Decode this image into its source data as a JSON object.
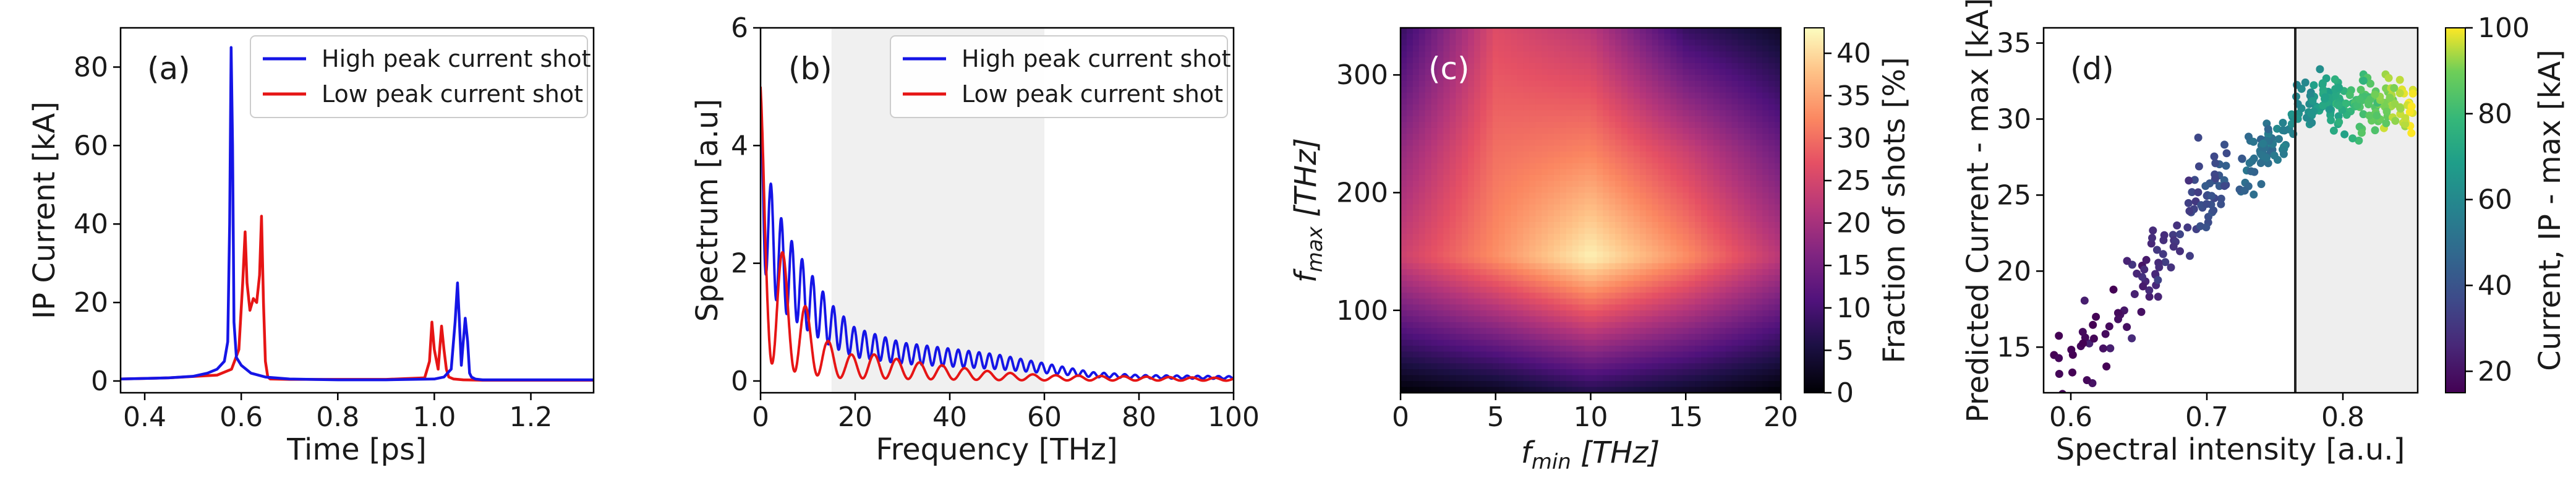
{
  "chart_data": [
    {
      "type": "line",
      "panel_label": "(a)",
      "xlabel": "Time [ps]",
      "ylabel": "IP Current [kA]",
      "xlim": [
        0.35,
        1.33
      ],
      "ylim": [
        -3,
        90
      ],
      "xticks": [
        0.4,
        0.6,
        0.8,
        1.0,
        1.2
      ],
      "xtick_labels": [
        "0.4",
        "0.6",
        "0.8",
        "1.0",
        "1.2"
      ],
      "yticks": [
        0,
        20,
        40,
        60,
        80
      ],
      "ytick_labels": [
        "0",
        "20",
        "40",
        "60",
        "80"
      ],
      "legend_position": "top-right",
      "series": [
        {
          "name": "High peak current shot",
          "color": "#1515e6",
          "x": [
            0.35,
            0.45,
            0.5,
            0.53,
            0.55,
            0.565,
            0.572,
            0.576,
            0.579,
            0.582,
            0.585,
            0.59,
            0.6,
            0.62,
            0.65,
            0.7,
            0.8,
            0.9,
            1.0,
            1.02,
            1.035,
            1.043,
            1.048,
            1.052,
            1.056,
            1.06,
            1.064,
            1.069,
            1.073,
            1.077,
            1.085,
            1.1,
            1.2,
            1.33
          ],
          "y": [
            0.5,
            0.8,
            1.2,
            2.0,
            3.0,
            5.0,
            10.0,
            40.0,
            85.0,
            60.0,
            15.0,
            6.0,
            4.0,
            2.0,
            1.0,
            0.5,
            0.3,
            0.3,
            0.5,
            1.0,
            3.0,
            15.0,
            25.0,
            15.0,
            4.0,
            10.0,
            16.0,
            10.0,
            2.0,
            1.0,
            0.5,
            0.3,
            0.3,
            0.3
          ]
        },
        {
          "name": "Low peak current shot",
          "color": "#e61515",
          "x": [
            0.35,
            0.45,
            0.55,
            0.58,
            0.595,
            0.603,
            0.608,
            0.612,
            0.618,
            0.625,
            0.632,
            0.638,
            0.642,
            0.646,
            0.65,
            0.655,
            0.66,
            0.7,
            0.9,
            0.98,
            0.99,
            0.995,
            1.0,
            1.008,
            1.015,
            1.02,
            1.025,
            1.03,
            1.04,
            1.06,
            1.1,
            1.33
          ],
          "y": [
            0.5,
            0.8,
            1.5,
            3.0,
            8.0,
            25.0,
            38.0,
            25.0,
            18.0,
            21.0,
            20.0,
            27.0,
            42.0,
            20.0,
            5.0,
            1.0,
            0.5,
            0.4,
            0.4,
            0.8,
            5.0,
            15.0,
            8.0,
            3.0,
            14.0,
            8.0,
            3.0,
            1.0,
            0.5,
            0.3,
            0.2,
            0.2
          ]
        }
      ]
    },
    {
      "type": "line",
      "panel_label": "(b)",
      "xlabel": "Frequency [THz]",
      "ylabel": "Spectrum [a.u]",
      "xlim": [
        0,
        100
      ],
      "ylim": [
        -0.2,
        6
      ],
      "xticks": [
        0,
        20,
        40,
        60,
        80,
        100
      ],
      "xtick_labels": [
        "0",
        "20",
        "40",
        "60",
        "80",
        "100"
      ],
      "yticks": [
        0,
        2,
        4,
        6
      ],
      "ytick_labels": [
        "0",
        "2",
        "4",
        "6"
      ],
      "shaded_x_range": [
        15,
        60
      ],
      "legend_position": "top-right",
      "series": [
        {
          "name": "High peak current shot",
          "color": "#1515e6",
          "model": "oscillating",
          "amplitude_points": [
            [
              0,
              4.8
            ],
            [
              2,
              3.4
            ],
            [
              5,
              2.6
            ],
            [
              10,
              1.9
            ],
            [
              15,
              1.3
            ],
            [
              20,
              0.9
            ],
            [
              30,
              0.65
            ],
            [
              40,
              0.55
            ],
            [
              50,
              0.45
            ],
            [
              60,
              0.3
            ],
            [
              70,
              0.15
            ],
            [
              80,
              0.1
            ],
            [
              100,
              0.08
            ]
          ],
          "period_thz": 2.2,
          "depth": 0.55
        },
        {
          "name": "Low peak current shot",
          "color": "#e61515",
          "model": "oscillating",
          "amplitude_points": [
            [
              0,
              5.0
            ],
            [
              1,
              3.6
            ],
            [
              3,
              2.7
            ],
            [
              6,
              1.8
            ],
            [
              10,
              1.2
            ],
            [
              14,
              0.7
            ],
            [
              18,
              0.45
            ],
            [
              25,
              0.45
            ],
            [
              30,
              0.35
            ],
            [
              40,
              0.25
            ],
            [
              50,
              0.15
            ],
            [
              60,
              0.1
            ],
            [
              100,
              0.05
            ]
          ],
          "period_thz": 4.8,
          "depth": 0.9
        }
      ]
    },
    {
      "type": "heatmap",
      "panel_label": "(c)",
      "xlabel_main": "f",
      "xlabel_sub": "min",
      "xlabel_unit": " [THz]",
      "ylabel_main": "f",
      "ylabel_sub": "max",
      "ylabel_unit": " [THz]",
      "xlim": [
        0,
        20
      ],
      "ylim": [
        30,
        340
      ],
      "xticks": [
        0,
        5,
        10,
        15,
        20
      ],
      "xtick_labels": [
        "0",
        "5",
        "10",
        "15",
        "20"
      ],
      "yticks": [
        100,
        200,
        300
      ],
      "ytick_labels": [
        "100",
        "200",
        "300"
      ],
      "x_grid": [
        0,
        5,
        10,
        15,
        20
      ],
      "y_grid": [
        30,
        145,
        235,
        340
      ],
      "values": [
        [
          0,
          2,
          6,
          3,
          0
        ],
        [
          24,
          33,
          42,
          33,
          22
        ],
        [
          18,
          30,
          32,
          24,
          14
        ],
        [
          8,
          26,
          22,
          8,
          3
        ]
      ],
      "colorbar": {
        "label": "Fraction of shots [%]",
        "range": [
          0,
          43
        ],
        "ticks": [
          0,
          5,
          10,
          15,
          20,
          25,
          30,
          35,
          40
        ],
        "tick_labels": [
          "0",
          "5",
          "10",
          "15",
          "20",
          "25",
          "30",
          "35",
          "40"
        ],
        "colormap": "magma"
      }
    },
    {
      "type": "scatter",
      "panel_label": "(d)",
      "xlabel": "Spectral intensity [a.u.]",
      "ylabel": "Predicted Current - max [kA]",
      "xlim": [
        0.58,
        0.855
      ],
      "ylim": [
        12,
        36
      ],
      "xticks": [
        0.6,
        0.7,
        0.8
      ],
      "xtick_labels": [
        "0.6",
        "0.7",
        "0.8"
      ],
      "yticks": [
        15,
        20,
        25,
        30,
        35
      ],
      "ytick_labels": [
        "15",
        "20",
        "25",
        "30",
        "35"
      ],
      "threshold_x": 0.765,
      "colorbar": {
        "label": "Current, IP - max [kA]",
        "range": [
          15,
          100
        ],
        "ticks": [
          20,
          40,
          60,
          80,
          100
        ],
        "tick_labels": [
          "20",
          "40",
          "60",
          "80",
          "100"
        ],
        "colormap": "viridis"
      },
      "points_generator": {
        "count": 340,
        "trend": [
          [
            0.58,
            12.5
          ],
          [
            0.62,
            15.5
          ],
          [
            0.65,
            19
          ],
          [
            0.68,
            23
          ],
          [
            0.7,
            25
          ],
          [
            0.72,
            26
          ],
          [
            0.75,
            28.5
          ],
          [
            0.77,
            30
          ],
          [
            0.8,
            31.5
          ],
          [
            0.85,
            32.5
          ]
        ],
        "spread_kA": 2.5,
        "x_density_bias": 0.65
      }
    }
  ]
}
